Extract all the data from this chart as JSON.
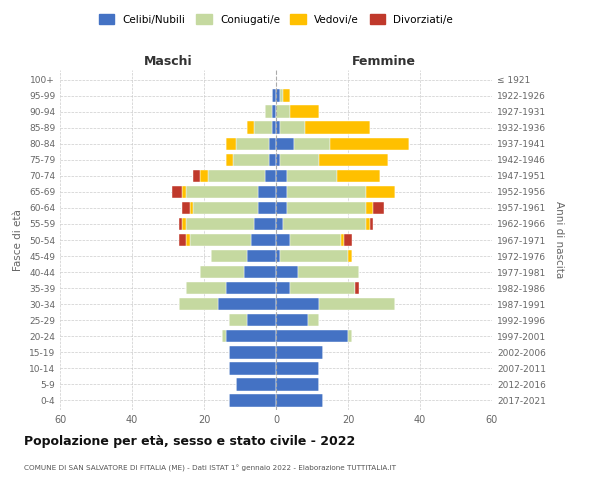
{
  "age_groups": [
    "0-4",
    "5-9",
    "10-14",
    "15-19",
    "20-24",
    "25-29",
    "30-34",
    "35-39",
    "40-44",
    "45-49",
    "50-54",
    "55-59",
    "60-64",
    "65-69",
    "70-74",
    "75-79",
    "80-84",
    "85-89",
    "90-94",
    "95-99",
    "100+"
  ],
  "birth_years": [
    "2017-2021",
    "2012-2016",
    "2007-2011",
    "2002-2006",
    "1997-2001",
    "1992-1996",
    "1987-1991",
    "1982-1986",
    "1977-1981",
    "1972-1976",
    "1967-1971",
    "1962-1966",
    "1957-1961",
    "1952-1956",
    "1947-1951",
    "1942-1946",
    "1937-1941",
    "1932-1936",
    "1927-1931",
    "1922-1926",
    "≤ 1921"
  ],
  "males": {
    "celibi": [
      13,
      11,
      13,
      13,
      14,
      8,
      16,
      14,
      9,
      8,
      7,
      6,
      5,
      5,
      3,
      2,
      2,
      1,
      1,
      1,
      0
    ],
    "coniugati": [
      0,
      0,
      0,
      0,
      1,
      5,
      11,
      11,
      12,
      10,
      17,
      19,
      18,
      20,
      16,
      10,
      9,
      5,
      2,
      0,
      0
    ],
    "vedovi": [
      0,
      0,
      0,
      0,
      0,
      0,
      0,
      0,
      0,
      0,
      1,
      1,
      1,
      1,
      2,
      2,
      3,
      2,
      0,
      0,
      0
    ],
    "divorziati": [
      0,
      0,
      0,
      0,
      0,
      0,
      0,
      0,
      0,
      0,
      2,
      1,
      2,
      3,
      2,
      0,
      0,
      0,
      0,
      0,
      0
    ]
  },
  "females": {
    "nubili": [
      13,
      12,
      12,
      13,
      20,
      9,
      12,
      4,
      6,
      1,
      4,
      2,
      3,
      3,
      3,
      1,
      5,
      1,
      0,
      1,
      0
    ],
    "coniugate": [
      0,
      0,
      0,
      0,
      1,
      3,
      21,
      18,
      17,
      19,
      14,
      23,
      22,
      22,
      14,
      11,
      10,
      7,
      4,
      1,
      0
    ],
    "vedove": [
      0,
      0,
      0,
      0,
      0,
      0,
      0,
      0,
      0,
      1,
      1,
      1,
      2,
      8,
      12,
      19,
      22,
      18,
      8,
      2,
      0
    ],
    "divorziate": [
      0,
      0,
      0,
      0,
      0,
      0,
      0,
      1,
      0,
      0,
      2,
      1,
      3,
      0,
      0,
      0,
      0,
      0,
      0,
      0,
      0
    ]
  },
  "colors": {
    "celibi": "#4472c4",
    "coniugati": "#c5d9a0",
    "vedovi": "#ffc000",
    "divorziati": "#c0392b"
  },
  "title": "Popolazione per età, sesso e stato civile - 2022",
  "subtitle": "COMUNE DI SAN SALVATORE DI FITALIA (ME) - Dati ISTAT 1° gennaio 2022 - Elaborazione TUTTITALIA.IT",
  "xlabel_left": "Maschi",
  "xlabel_right": "Femmine",
  "ylabel_left": "Fasce di età",
  "ylabel_right": "Anni di nascita",
  "xlim": 60,
  "background_color": "#ffffff",
  "legend_labels": [
    "Celibi/Nubili",
    "Coniugati/e",
    "Vedovi/e",
    "Divorziati/e"
  ]
}
